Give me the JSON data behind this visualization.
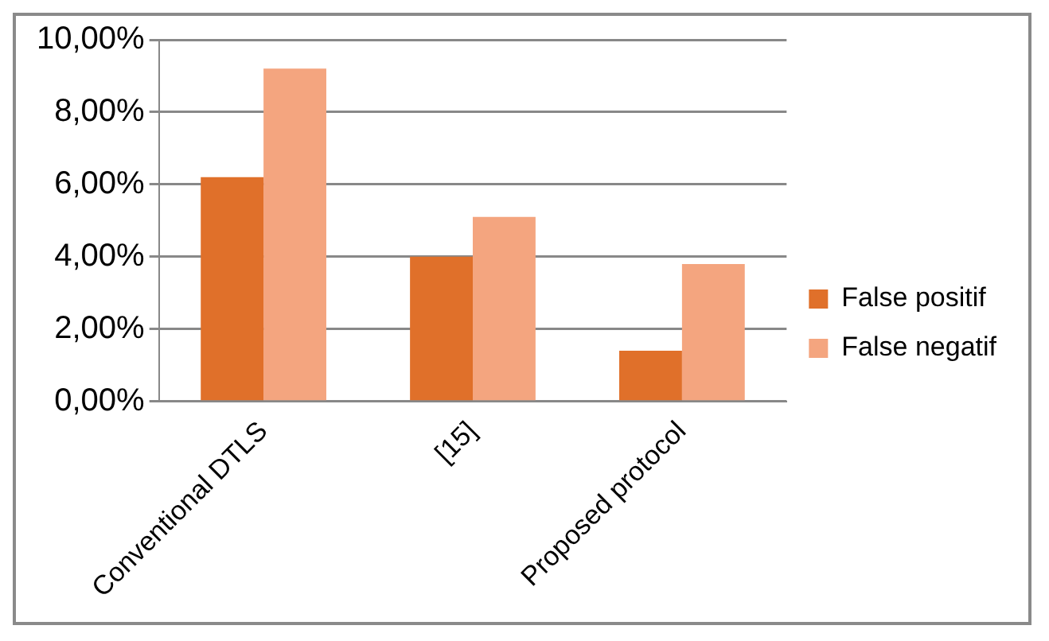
{
  "chart_data": {
    "type": "bar",
    "categories": [
      "Conventional DTLS",
      "[15]",
      "Proposed protocol"
    ],
    "series": [
      {
        "name": "False positif",
        "color": "#e0702a",
        "values": [
          6.2,
          4.0,
          1.4
        ]
      },
      {
        "name": "False negatif",
        "color": "#f4a57f",
        "values": [
          9.2,
          5.1,
          3.8
        ]
      }
    ],
    "ylim": [
      0,
      10
    ],
    "yticks": [
      {
        "value": 0,
        "label": "0,00%"
      },
      {
        "value": 2,
        "label": "2,00%"
      },
      {
        "value": 4,
        "label": "4,00%"
      },
      {
        "value": 6,
        "label": "6,00%"
      },
      {
        "value": 8,
        "label": "8,00%"
      },
      {
        "value": 10,
        "label": "10,00%"
      }
    ],
    "grid": "y",
    "legend": "right"
  }
}
